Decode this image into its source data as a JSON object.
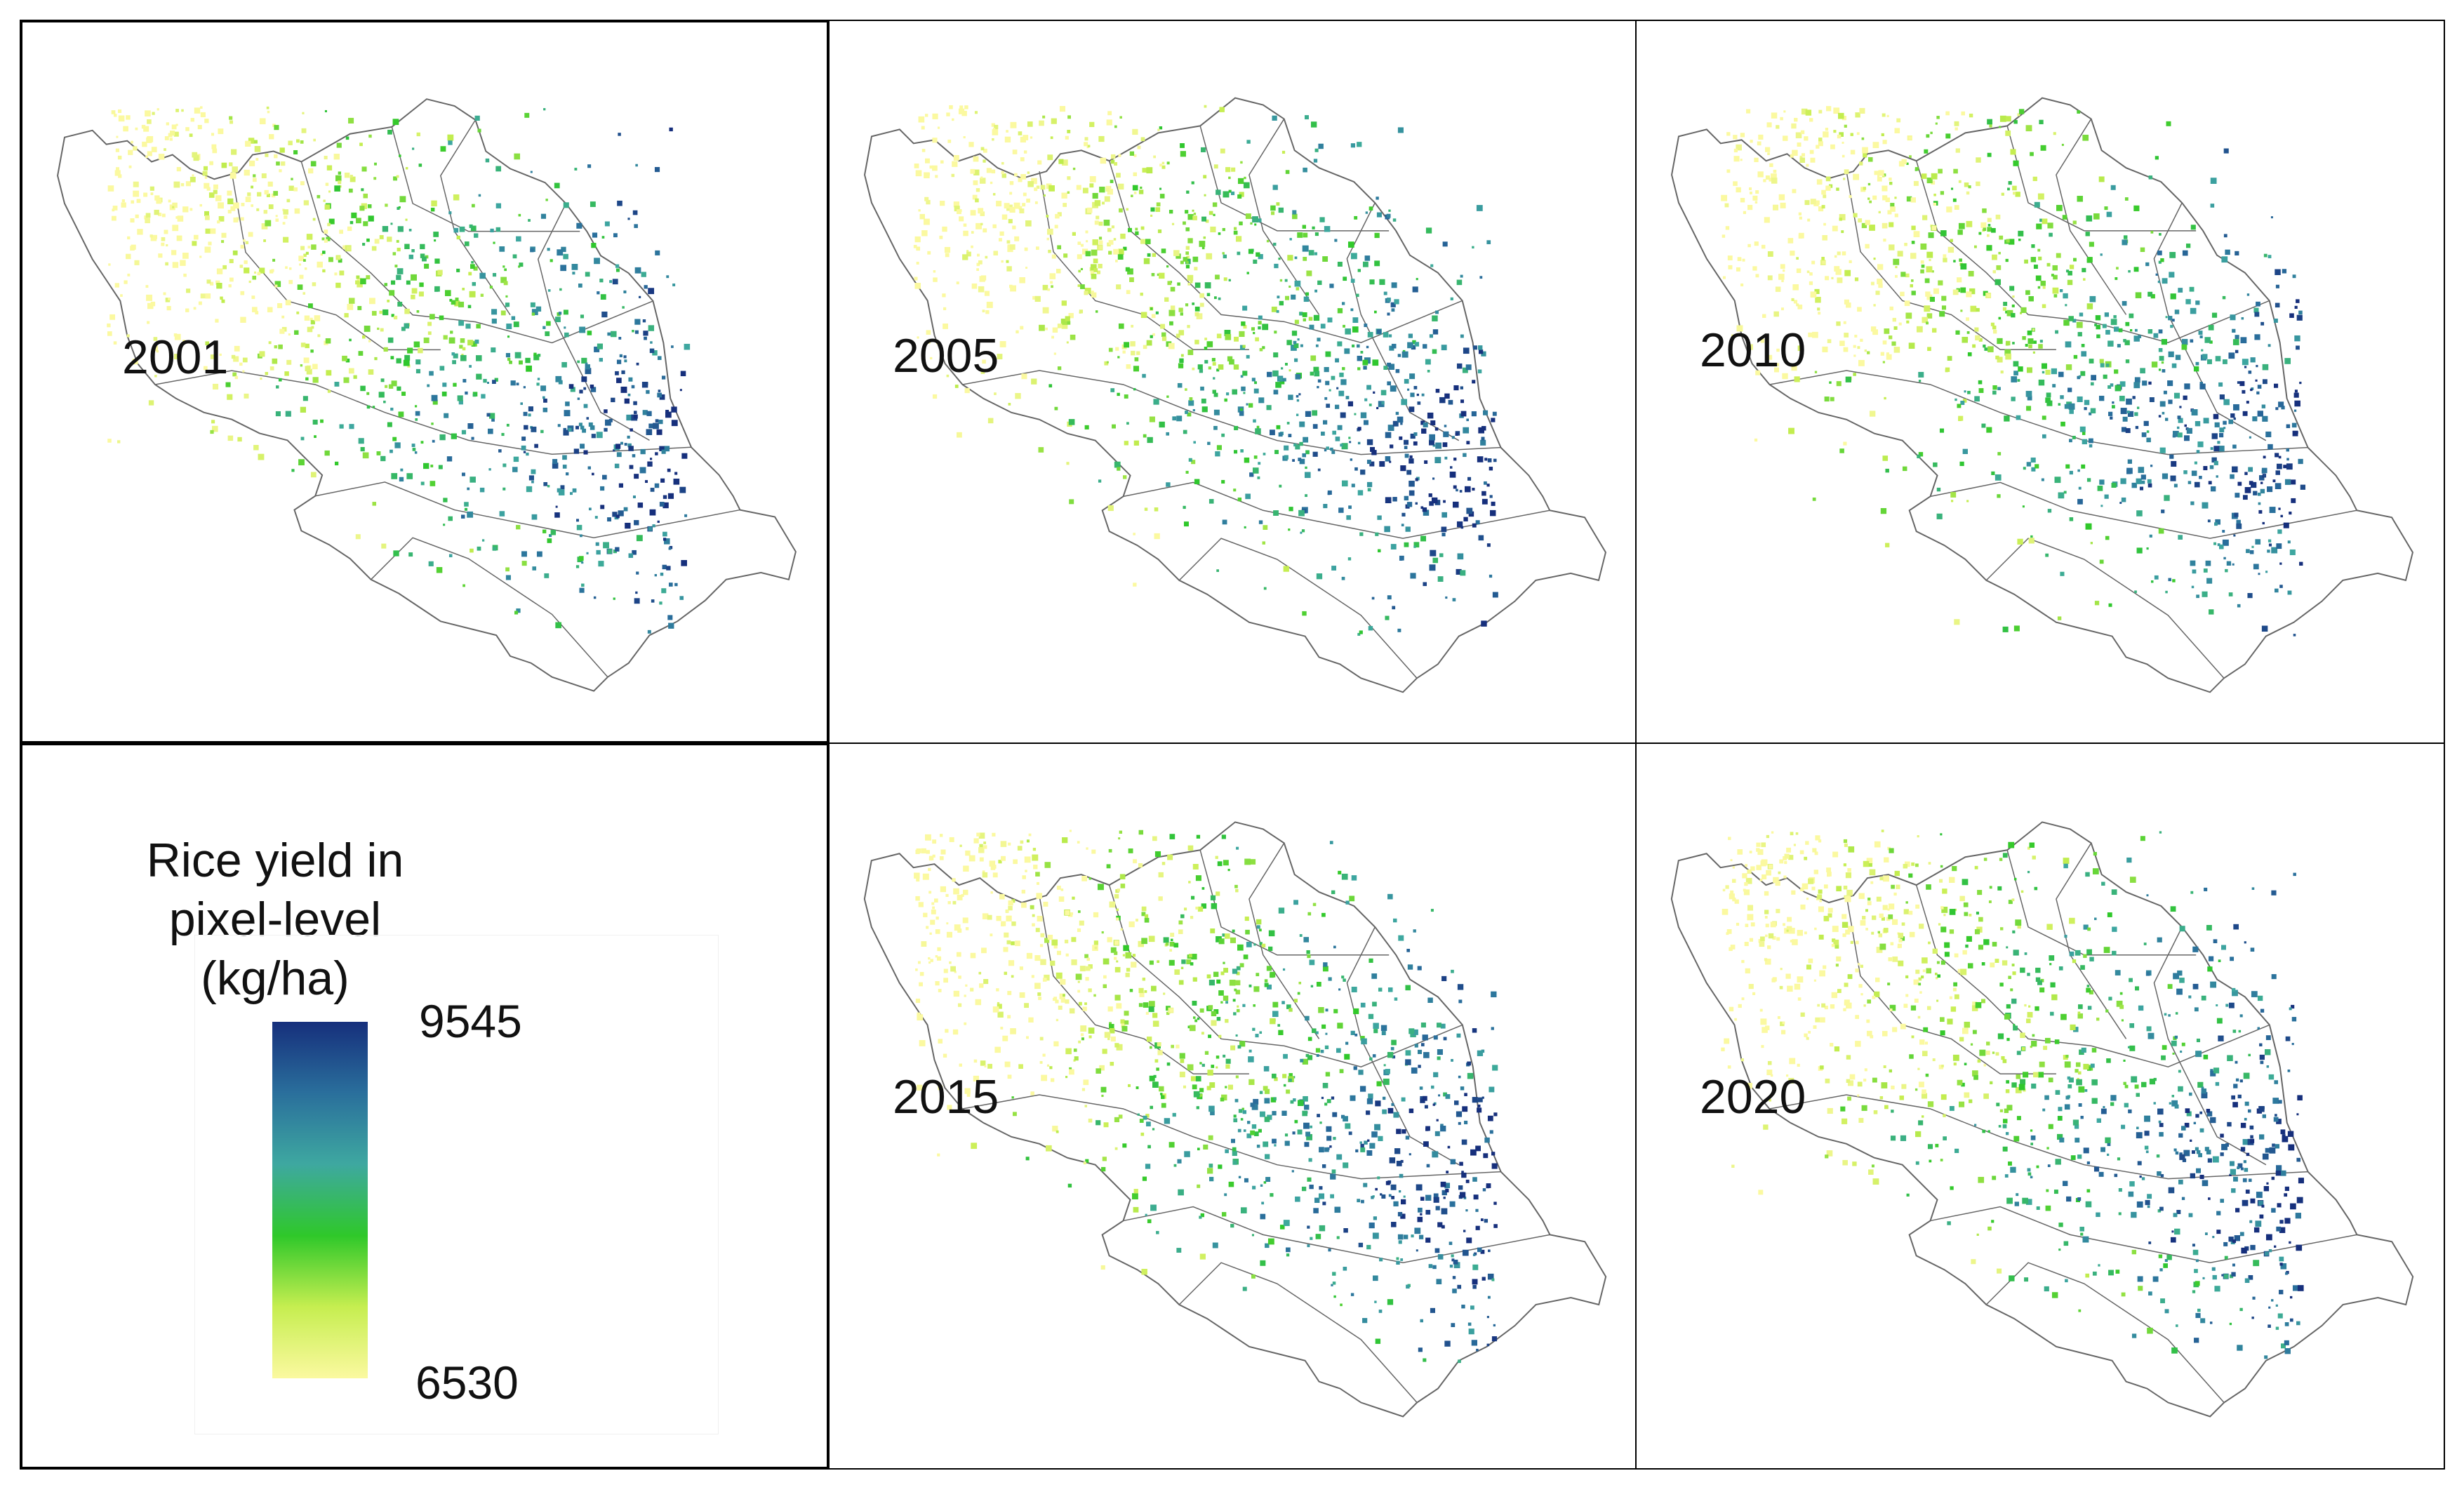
{
  "panels": [
    {
      "year": "2001"
    },
    {
      "year": "2005"
    },
    {
      "year": "2010"
    },
    {
      "year": "2015"
    },
    {
      "year": "2020"
    }
  ],
  "legend": {
    "title_lines": [
      "Rice yield in",
      "pixel-level",
      "(kg/ha)"
    ],
    "max_label": "9545",
    "min_label": "6530",
    "colormap": [
      "#fbf9a0",
      "#c6ee50",
      "#2fc82a",
      "#3ea8a0",
      "#2a6f9c",
      "#162f7c"
    ]
  },
  "colors": {
    "border": "#000000",
    "outline": "#666666",
    "high": "#162f7c",
    "low": "#f4f48f"
  }
}
